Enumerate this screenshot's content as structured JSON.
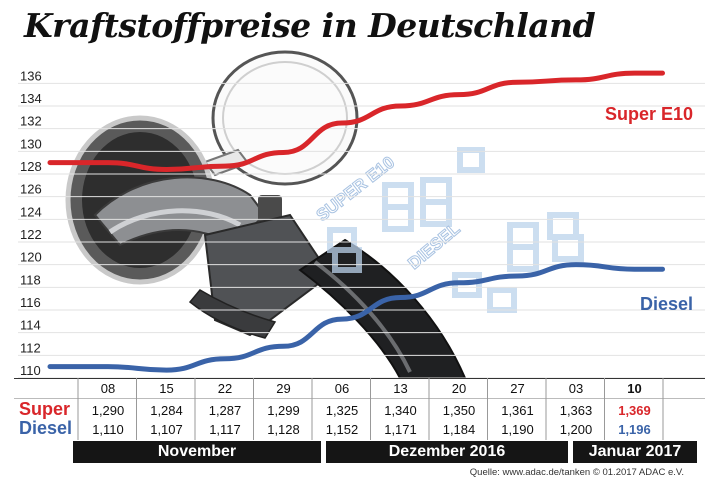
{
  "title": "Kraftstoffpreise in Deutschland",
  "chart_data": {
    "type": "line",
    "x": [
      "08",
      "15",
      "22",
      "29",
      "06",
      "13",
      "20",
      "27",
      "03",
      "10"
    ],
    "ylim": [
      110,
      137
    ],
    "yticks": [
      110,
      112,
      114,
      116,
      118,
      120,
      122,
      124,
      126,
      128,
      130,
      132,
      134,
      136
    ],
    "series": [
      {
        "name": "Super E10",
        "color": "#d9262a",
        "values": [
          129.0,
          128.4,
          128.7,
          129.9,
          132.5,
          134.0,
          135.0,
          136.1,
          136.3,
          136.9
        ]
      },
      {
        "name": "Diesel",
        "color": "#3a63a8",
        "values": [
          111.0,
          110.7,
          111.7,
          112.8,
          115.2,
          117.1,
          118.4,
          119.0,
          120.0,
          119.6
        ]
      }
    ],
    "months": [
      "November",
      "Dezember 2016",
      "Januar 2017"
    ]
  },
  "table": {
    "super_label": "Super",
    "diesel_label": "Diesel",
    "super": [
      "1,290",
      "1,284",
      "1,287",
      "1,299",
      "1,325",
      "1,340",
      "1,350",
      "1,361",
      "1,363",
      "1,369"
    ],
    "diesel": [
      "1,110",
      "1,107",
      "1,117",
      "1,128",
      "1,152",
      "1,171",
      "1,184",
      "1,190",
      "1,200",
      "1,196"
    ]
  },
  "background_text": {
    "super_e10": "SUPER E10",
    "diesel": "DIESEL"
  },
  "source": "Quelle: www.adac.de/tanken  © 01.2017  ADAC e.V."
}
